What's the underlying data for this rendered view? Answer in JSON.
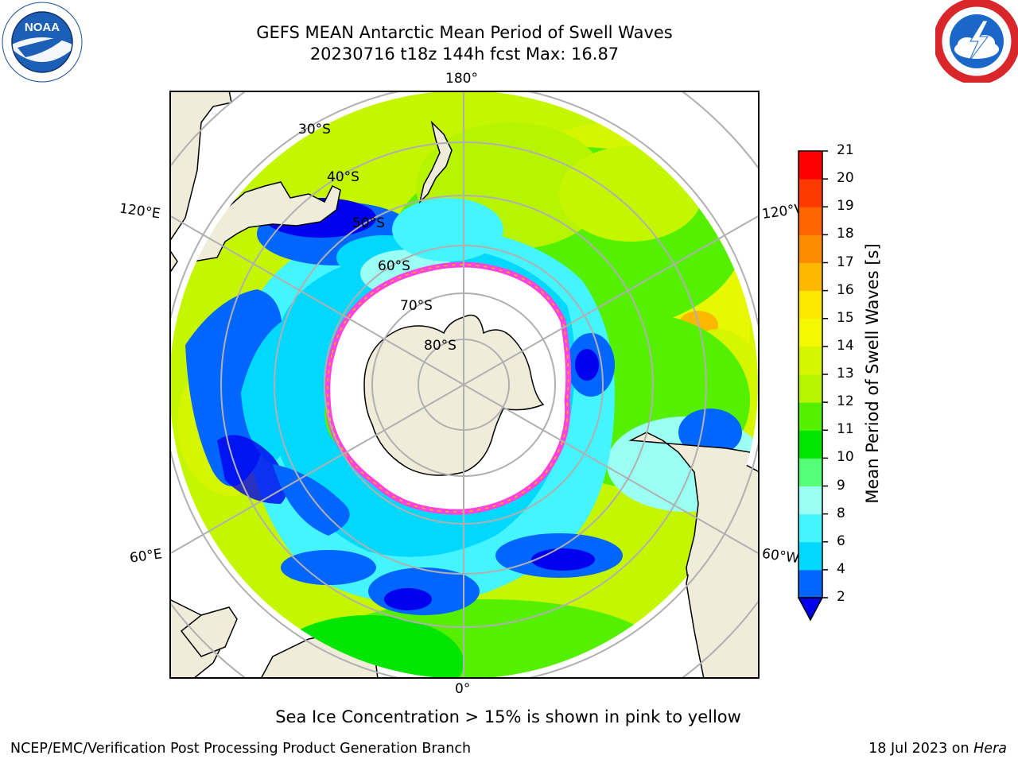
{
  "header": {
    "title_line1": "GEFS MEAN Antarctic Mean Period of Swell Waves",
    "title_line2": "20230716 t18z 144h fcst   Max: 16.87"
  },
  "logos": {
    "left": {
      "icon": "noaa-logo-icon",
      "text": "NOAA"
    },
    "right": {
      "icon": "nws-logo-icon"
    }
  },
  "map": {
    "projection": "south-polar-stereographic",
    "longitude_labels": {
      "top": "180°",
      "bottom": "0°",
      "upper_left": "120°E",
      "upper_right": "120°W",
      "lower_left": "60°E",
      "lower_right": "60°W"
    },
    "latitude_labels": [
      "30°S",
      "40°S",
      "50°S",
      "60°S",
      "70°S",
      "80°S"
    ],
    "colors": {
      "land": "#efedda",
      "grid": "#b0b0b0",
      "ice_no_data": "#ffffff",
      "ice_edge": "#ff44dd"
    }
  },
  "colorbar": {
    "label": "Mean Period of Swell Waves [s]",
    "ticks": [
      "2",
      "4",
      "6",
      "8",
      "9",
      "10",
      "11",
      "12",
      "13",
      "14",
      "15",
      "16",
      "17",
      "18",
      "19",
      "20",
      "21"
    ],
    "bins": [
      {
        "from": 2,
        "to": 4,
        "color": "#0066ff"
      },
      {
        "from": 4,
        "to": 6,
        "color": "#00d8ff"
      },
      {
        "from": 6,
        "to": 8,
        "color": "#44f4ff"
      },
      {
        "from": 8,
        "to": 9,
        "color": "#9cfff4"
      },
      {
        "from": 9,
        "to": 10,
        "color": "#55ff77"
      },
      {
        "from": 10,
        "to": 11,
        "color": "#00e600"
      },
      {
        "from": 11,
        "to": 12,
        "color": "#55f000"
      },
      {
        "from": 12,
        "to": 13,
        "color": "#b7f400"
      },
      {
        "from": 13,
        "to": 14,
        "color": "#d6f600"
      },
      {
        "from": 14,
        "to": 15,
        "color": "#f4f800"
      },
      {
        "from": 15,
        "to": 16,
        "color": "#ffe800"
      },
      {
        "from": 16,
        "to": 17,
        "color": "#ffb800"
      },
      {
        "from": 17,
        "to": 18,
        "color": "#ff8c00"
      },
      {
        "from": 18,
        "to": 19,
        "color": "#ff6600"
      },
      {
        "from": 19,
        "to": 20,
        "color": "#ff3a00"
      },
      {
        "from": 20,
        "to": 21,
        "color": "#ff0000"
      }
    ],
    "under_color": "#0000ee"
  },
  "note": "Sea Ice Concentration > 15% is shown in pink to yellow",
  "footer": {
    "left": "NCEP/EMC/Verification Post Processing Product Generation Branch",
    "right_date": "18 Jul 2023 on",
    "right_host": "Hera"
  }
}
